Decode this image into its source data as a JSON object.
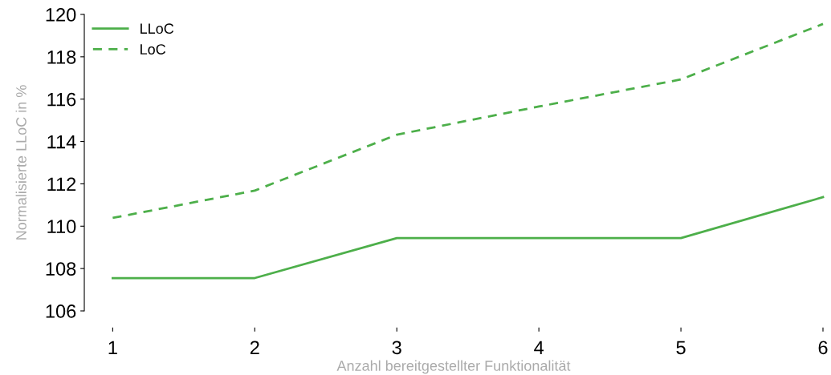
{
  "chart_data": {
    "type": "line",
    "xlabel": "Anzahl bereitgestellter Funktionalität",
    "ylabel": "Normalisierte LLoC in %",
    "x": [
      1,
      2,
      3,
      4,
      5,
      6
    ],
    "series": [
      {
        "name": "LLoC",
        "color": "#4daf4a",
        "line_style": "solid",
        "values": [
          107.55,
          107.55,
          109.44,
          109.44,
          109.44,
          111.37
        ]
      },
      {
        "name": "LoC",
        "color": "#4daf4a",
        "line_style": "dashed",
        "values": [
          110.39,
          111.68,
          114.32,
          115.65,
          116.93,
          119.55
        ]
      }
    ],
    "xlim": [
      0.8,
      6
    ],
    "ylim": [
      106,
      120
    ],
    "xticks": [
      1,
      2,
      3,
      4,
      5,
      6
    ],
    "yticks": [
      106,
      108,
      110,
      112,
      114,
      116,
      118,
      120
    ],
    "grid": false,
    "legend": "top left",
    "marker": "none"
  }
}
